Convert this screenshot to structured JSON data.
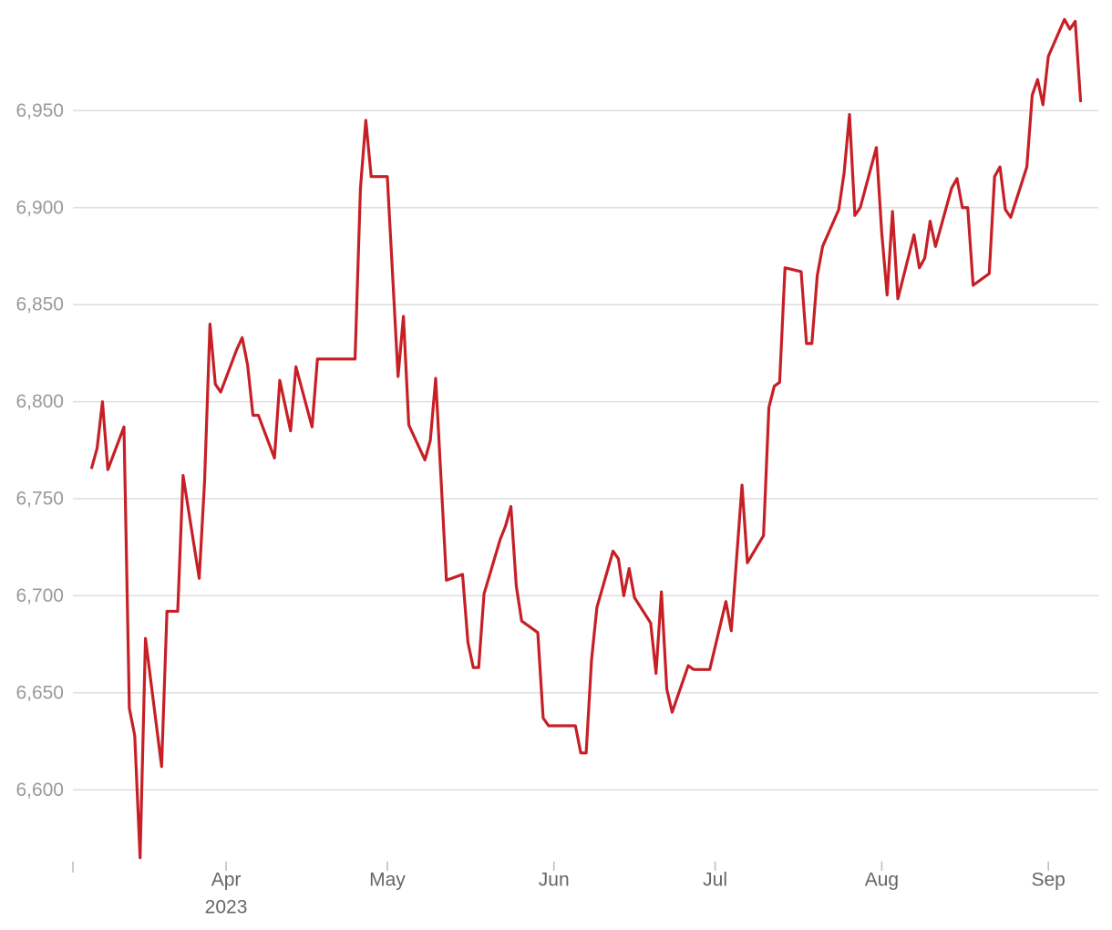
{
  "chart_data": {
    "type": "line",
    "color": "#c62026",
    "grid": true,
    "x": [
      66,
      67,
      68,
      69,
      72,
      73,
      74,
      75,
      76,
      79,
      80,
      82,
      83,
      86,
      87,
      88,
      89,
      90,
      93,
      94,
      95,
      96,
      97,
      100,
      101,
      103,
      104,
      107,
      108,
      115,
      116,
      117,
      118,
      121,
      123,
      124,
      125,
      128,
      129,
      130,
      132,
      135,
      136,
      137,
      138,
      139,
      142,
      143,
      144,
      145,
      146,
      149,
      150,
      151,
      156,
      157,
      158,
      159,
      160,
      163,
      164,
      165,
      166,
      167,
      170,
      171,
      172,
      173,
      174,
      177,
      178,
      181,
      184,
      185,
      187,
      188,
      191,
      192,
      193,
      194,
      195,
      198,
      199,
      200,
      201,
      202,
      205,
      206,
      207,
      208,
      209,
      212,
      213,
      214,
      215,
      216,
      219,
      220,
      221,
      222,
      223,
      226,
      227,
      228,
      229,
      230,
      233,
      234,
      235,
      236,
      237,
      240,
      241,
      242,
      243,
      244,
      247,
      248,
      249,
      250
    ],
    "values": [
      6766,
      6776,
      6800,
      6765,
      6787,
      6642,
      6628,
      6565,
      6678,
      6612,
      6692,
      6692,
      6762,
      6709,
      6759,
      6840,
      6809,
      6805,
      6827,
      6833,
      6819,
      6793,
      6793,
      6771,
      6811,
      6785,
      6818,
      6787,
      6822,
      6822,
      6910,
      6945,
      6916,
      6916,
      6813,
      6844,
      6788,
      6770,
      6780,
      6812,
      6708,
      6711,
      6676,
      6663,
      6663,
      6701,
      6729,
      6736,
      6746,
      6705,
      6687,
      6681,
      6637,
      6633,
      6633,
      6619,
      6619,
      6667,
      6694,
      6723,
      6719,
      6700,
      6714,
      6699,
      6686,
      6660,
      6702,
      6652,
      6640,
      6664,
      6662,
      6662,
      6697,
      6682,
      6757,
      6717,
      6731,
      6797,
      6808,
      6810,
      6869,
      6867,
      6830,
      6830,
      6865,
      6880,
      6899,
      6918,
      6948,
      6896,
      6900,
      6931,
      6887,
      6855,
      6898,
      6853,
      6886,
      6869,
      6874,
      6893,
      6880,
      6910,
      6915,
      6900,
      6900,
      6860,
      6866,
      6916,
      6921,
      6899,
      6895,
      6921,
      6958,
      6966,
      6953,
      6978,
      6997,
      6992,
      6996,
      6955
    ],
    "xlim": [
      62.5,
      253.3
    ],
    "xticks": [
      {
        "value": 91,
        "label": "Apr"
      },
      {
        "value": 121,
        "label": "May"
      },
      {
        "value": 152,
        "label": "Jun"
      },
      {
        "value": 182,
        "label": "Jul"
      },
      {
        "value": 213,
        "label": "Aug"
      },
      {
        "value": 244,
        "label": "Sep"
      }
    ],
    "x_year_label": "2023",
    "ylim": [
      6563,
      7007
    ],
    "yticks": [
      {
        "value": 6600,
        "label": "6,600"
      },
      {
        "value": 6650,
        "label": "6,650"
      },
      {
        "value": 6700,
        "label": "6,700"
      },
      {
        "value": 6750,
        "label": "6,750"
      },
      {
        "value": 6800,
        "label": "6,800"
      },
      {
        "value": 6850,
        "label": "6,850"
      },
      {
        "value": 6900,
        "label": "6,900"
      },
      {
        "value": 6950,
        "label": "6,950"
      }
    ]
  }
}
